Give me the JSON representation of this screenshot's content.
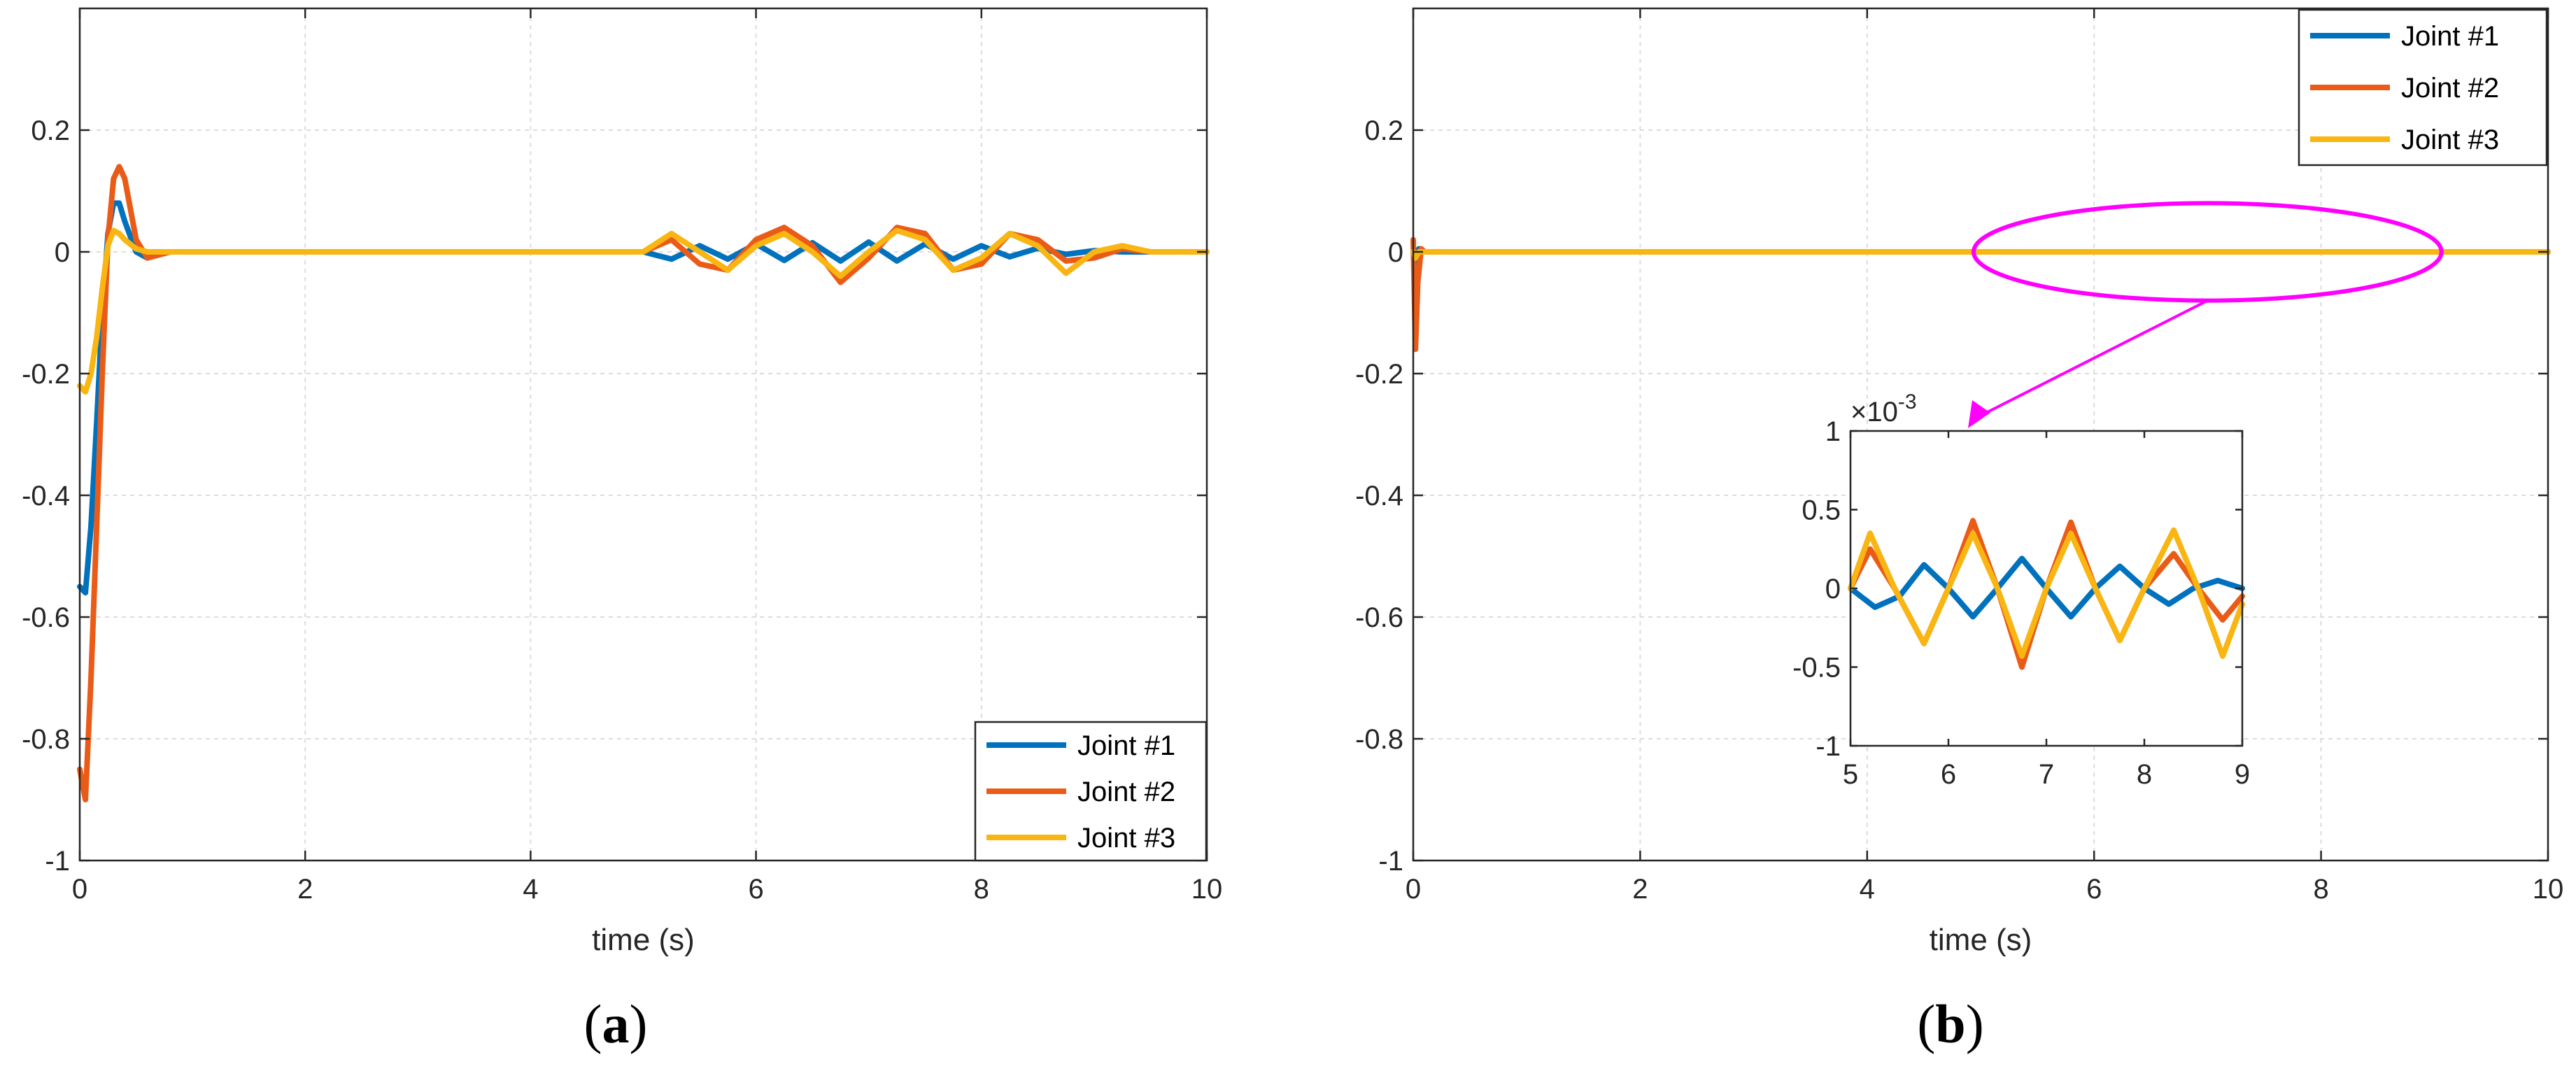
{
  "figure": {
    "caption_a": "a",
    "caption_b": "b",
    "caption_open": "(",
    "caption_close": ")"
  },
  "colors": {
    "joint1": "#0072BD",
    "joint2": "#EA5B18",
    "joint3": "#F9B511",
    "highlight": "#FF00FF",
    "grid": "#dcdcdc"
  },
  "chart_data": [
    {
      "id": "a",
      "type": "line",
      "title": "",
      "xlabel": "time (s)",
      "ylabel": "",
      "xlim": [
        0,
        10
      ],
      "ylim": [
        -1,
        0.4
      ],
      "xticks": [
        0,
        2,
        4,
        6,
        8,
        10
      ],
      "xtick_labels": [
        "0",
        "2",
        "4",
        "6",
        "8",
        "10"
      ],
      "yticks": [
        -1,
        -0.8,
        -0.6,
        -0.4,
        -0.2,
        0,
        0.2
      ],
      "ytick_labels": [
        "-1",
        "-0.8",
        "-0.6",
        "-0.4",
        "-0.2",
        "0",
        "0.2"
      ],
      "grid": true,
      "legend_position": "bottom-right",
      "series": [
        {
          "name": "Joint #1",
          "color_key": "joint1",
          "points": [
            [
              0,
              -0.55
            ],
            [
              0.05,
              -0.56
            ],
            [
              0.1,
              -0.45
            ],
            [
              0.15,
              -0.28
            ],
            [
              0.2,
              -0.1
            ],
            [
              0.25,
              0.03
            ],
            [
              0.3,
              0.08
            ],
            [
              0.35,
              0.08
            ],
            [
              0.4,
              0.05
            ],
            [
              0.5,
              0.0
            ],
            [
              0.6,
              -0.01
            ],
            [
              0.8,
              0.0
            ],
            [
              1,
              0
            ],
            [
              5,
              0
            ],
            [
              5.25,
              -0.012
            ],
            [
              5.5,
              0.01
            ],
            [
              5.75,
              -0.012
            ],
            [
              6.0,
              0.013
            ],
            [
              6.25,
              -0.014
            ],
            [
              6.5,
              0.015
            ],
            [
              6.75,
              -0.015
            ],
            [
              7.0,
              0.016
            ],
            [
              7.25,
              -0.015
            ],
            [
              7.5,
              0.013
            ],
            [
              7.75,
              -0.012
            ],
            [
              8.0,
              0.01
            ],
            [
              8.25,
              -0.008
            ],
            [
              8.5,
              0.006
            ],
            [
              8.75,
              -0.004
            ],
            [
              9.0,
              0.002
            ],
            [
              9.25,
              0
            ],
            [
              10,
              0
            ]
          ]
        },
        {
          "name": "Joint #2",
          "color_key": "joint2",
          "points": [
            [
              0,
              -0.85
            ],
            [
              0.05,
              -0.9
            ],
            [
              0.1,
              -0.7
            ],
            [
              0.15,
              -0.45
            ],
            [
              0.2,
              -0.2
            ],
            [
              0.25,
              0.02
            ],
            [
              0.3,
              0.12
            ],
            [
              0.35,
              0.14
            ],
            [
              0.4,
              0.12
            ],
            [
              0.45,
              0.07
            ],
            [
              0.5,
              0.02
            ],
            [
              0.6,
              -0.01
            ],
            [
              0.7,
              -0.005
            ],
            [
              0.8,
              0
            ],
            [
              1,
              0
            ],
            [
              5,
              0
            ],
            [
              5.25,
              0.02
            ],
            [
              5.5,
              -0.02
            ],
            [
              5.75,
              -0.03
            ],
            [
              6.0,
              0.02
            ],
            [
              6.25,
              0.04
            ],
            [
              6.5,
              0.01
            ],
            [
              6.75,
              -0.05
            ],
            [
              7.0,
              -0.01
            ],
            [
              7.25,
              0.04
            ],
            [
              7.5,
              0.03
            ],
            [
              7.75,
              -0.03
            ],
            [
              8.0,
              -0.02
            ],
            [
              8.25,
              0.03
            ],
            [
              8.5,
              0.02
            ],
            [
              8.75,
              -0.015
            ],
            [
              9.0,
              -0.01
            ],
            [
              9.25,
              0.005
            ],
            [
              9.5,
              0
            ],
            [
              10,
              0
            ]
          ]
        },
        {
          "name": "Joint #3",
          "color_key": "joint3",
          "points": [
            [
              0,
              -0.22
            ],
            [
              0.05,
              -0.23
            ],
            [
              0.1,
              -0.2
            ],
            [
              0.15,
              -0.14
            ],
            [
              0.2,
              -0.06
            ],
            [
              0.25,
              0.01
            ],
            [
              0.3,
              0.035
            ],
            [
              0.35,
              0.03
            ],
            [
              0.4,
              0.02
            ],
            [
              0.5,
              0.005
            ],
            [
              0.6,
              0
            ],
            [
              1,
              0
            ],
            [
              5,
              0
            ],
            [
              5.25,
              0.03
            ],
            [
              5.5,
              0.0
            ],
            [
              5.75,
              -0.03
            ],
            [
              6.0,
              0.01
            ],
            [
              6.25,
              0.03
            ],
            [
              6.5,
              0.0
            ],
            [
              6.75,
              -0.04
            ],
            [
              7.0,
              0.0
            ],
            [
              7.25,
              0.035
            ],
            [
              7.5,
              0.02
            ],
            [
              7.75,
              -0.03
            ],
            [
              8.0,
              -0.01
            ],
            [
              8.25,
              0.03
            ],
            [
              8.5,
              0.01
            ],
            [
              8.75,
              -0.035
            ],
            [
              9.0,
              0.0
            ],
            [
              9.25,
              0.01
            ],
            [
              9.5,
              0
            ],
            [
              10,
              0
            ]
          ]
        }
      ]
    },
    {
      "id": "b",
      "type": "line",
      "title": "",
      "xlabel": "time (s)",
      "ylabel": "",
      "xlim": [
        0,
        10
      ],
      "ylim": [
        -1,
        0.4
      ],
      "xticks": [
        0,
        2,
        4,
        6,
        8,
        10
      ],
      "xtick_labels": [
        "0",
        "2",
        "4",
        "6",
        "8",
        "10"
      ],
      "yticks": [
        -1,
        -0.8,
        -0.6,
        -0.4,
        -0.2,
        0,
        0.2
      ],
      "ytick_labels": [
        "-1",
        "-0.8",
        "-0.6",
        "-0.4",
        "-0.2",
        "0",
        "0.2"
      ],
      "grid": true,
      "legend_position": "top-right",
      "highlight_region": {
        "x": [
          5,
          9
        ],
        "y": [
          -0.08,
          0.08
        ]
      },
      "series": [
        {
          "name": "Joint #1",
          "color_key": "joint1",
          "points": [
            [
              0,
              0
            ],
            [
              0.02,
              -0.03
            ],
            [
              0.05,
              0.005
            ],
            [
              0.1,
              0
            ],
            [
              10,
              0
            ]
          ]
        },
        {
          "name": "Joint #2",
          "color_key": "joint2",
          "points": [
            [
              0,
              0.02
            ],
            [
              0.02,
              -0.16
            ],
            [
              0.04,
              -0.05
            ],
            [
              0.07,
              0.005
            ],
            [
              0.1,
              0
            ],
            [
              10,
              0
            ]
          ]
        },
        {
          "name": "Joint #3",
          "color_key": "joint3",
          "points": [
            [
              0,
              0
            ],
            [
              0.02,
              -0.01
            ],
            [
              0.05,
              0
            ],
            [
              10,
              0
            ]
          ]
        }
      ],
      "inset": {
        "type": "line",
        "xlim": [
          5,
          9
        ],
        "ylim": [
          -1,
          1
        ],
        "xticks": [
          5,
          6,
          7,
          8,
          9
        ],
        "xtick_labels": [
          "5",
          "6",
          "7",
          "8",
          "9"
        ],
        "yticks": [
          -1,
          -0.5,
          0,
          0.5,
          1
        ],
        "ytick_labels": [
          "-1",
          "-0.5",
          "0",
          "0.5",
          "1"
        ],
        "exponent_label": "×10",
        "exponent_power": "-3",
        "series": [
          {
            "name": "Joint #1",
            "color_key": "joint1",
            "points": [
              [
                5,
                0
              ],
              [
                5.25,
                -0.12
              ],
              [
                5.5,
                -0.05
              ],
              [
                5.75,
                0.15
              ],
              [
                6.0,
                0.0
              ],
              [
                6.25,
                -0.18
              ],
              [
                6.5,
                0.0
              ],
              [
                6.75,
                0.19
              ],
              [
                7.0,
                0.0
              ],
              [
                7.25,
                -0.18
              ],
              [
                7.5,
                0.0
              ],
              [
                7.75,
                0.14
              ],
              [
                8.0,
                0.0
              ],
              [
                8.25,
                -0.1
              ],
              [
                8.5,
                0.0
              ],
              [
                8.75,
                0.05
              ],
              [
                9.0,
                0.0
              ]
            ]
          },
          {
            "name": "Joint #2",
            "color_key": "joint2",
            "points": [
              [
                5,
                0
              ],
              [
                5.2,
                0.25
              ],
              [
                5.45,
                0.0
              ],
              [
                5.75,
                -0.35
              ],
              [
                6.0,
                0.0
              ],
              [
                6.25,
                0.43
              ],
              [
                6.5,
                0.0
              ],
              [
                6.75,
                -0.5
              ],
              [
                7.0,
                0.0
              ],
              [
                7.25,
                0.42
              ],
              [
                7.5,
                0.0
              ],
              [
                7.75,
                -0.33
              ],
              [
                8.0,
                0.0
              ],
              [
                8.3,
                0.22
              ],
              [
                8.55,
                0.0
              ],
              [
                8.8,
                -0.2
              ],
              [
                9.0,
                -0.05
              ]
            ]
          },
          {
            "name": "Joint #3",
            "color_key": "joint3",
            "points": [
              [
                5,
                0
              ],
              [
                5.2,
                0.35
              ],
              [
                5.45,
                0.0
              ],
              [
                5.75,
                -0.35
              ],
              [
                6.0,
                0.0
              ],
              [
                6.25,
                0.35
              ],
              [
                6.5,
                0.0
              ],
              [
                6.75,
                -0.43
              ],
              [
                7.0,
                0.0
              ],
              [
                7.25,
                0.35
              ],
              [
                7.5,
                0.0
              ],
              [
                7.75,
                -0.33
              ],
              [
                8.0,
                0.0
              ],
              [
                8.3,
                0.37
              ],
              [
                8.55,
                0.0
              ],
              [
                8.8,
                -0.43
              ],
              [
                9.0,
                -0.1
              ]
            ]
          }
        ]
      }
    }
  ]
}
